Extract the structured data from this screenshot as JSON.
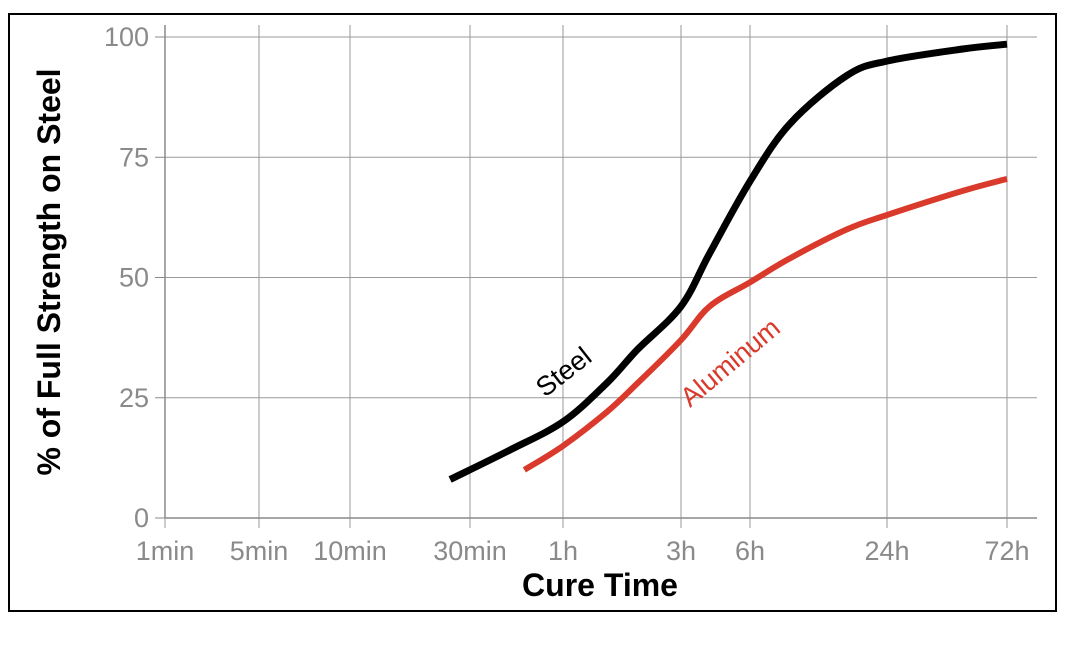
{
  "chart_data": {
    "type": "line",
    "xlabel": "Cure Time",
    "ylabel": "% of Full Strength on Steel",
    "x_ticks": [
      "1min",
      "5min",
      "10min",
      "30min",
      "1h",
      "3h",
      "6h",
      "24h",
      "72h"
    ],
    "y_ticks": [
      "0",
      "25",
      "50",
      "75",
      "100"
    ],
    "ylim": [
      0,
      100
    ],
    "grid": true,
    "series": [
      {
        "name": "Steel",
        "color": "#000000",
        "points": [
          [
            "25min",
            8
          ],
          [
            "40min",
            14
          ],
          [
            "1h",
            20
          ],
          [
            "1.5h",
            28
          ],
          [
            "2h",
            35
          ],
          [
            "3h",
            44
          ],
          [
            "4h",
            55
          ],
          [
            "6h",
            70
          ],
          [
            "9h",
            82
          ],
          [
            "16h",
            92
          ],
          [
            "24h",
            95
          ],
          [
            "48h",
            97.5
          ],
          [
            "72h",
            98.5
          ]
        ]
      },
      {
        "name": "Aluminum",
        "color": "#d93a2b",
        "points": [
          [
            "45min",
            10
          ],
          [
            "1h",
            15
          ],
          [
            "1.5h",
            22
          ],
          [
            "2h",
            28
          ],
          [
            "3h",
            37
          ],
          [
            "4h",
            44
          ],
          [
            "6h",
            49
          ],
          [
            "9h",
            54
          ],
          [
            "16h",
            60
          ],
          [
            "24h",
            63
          ],
          [
            "48h",
            68
          ],
          [
            "72h",
            70.5
          ]
        ]
      }
    ]
  }
}
